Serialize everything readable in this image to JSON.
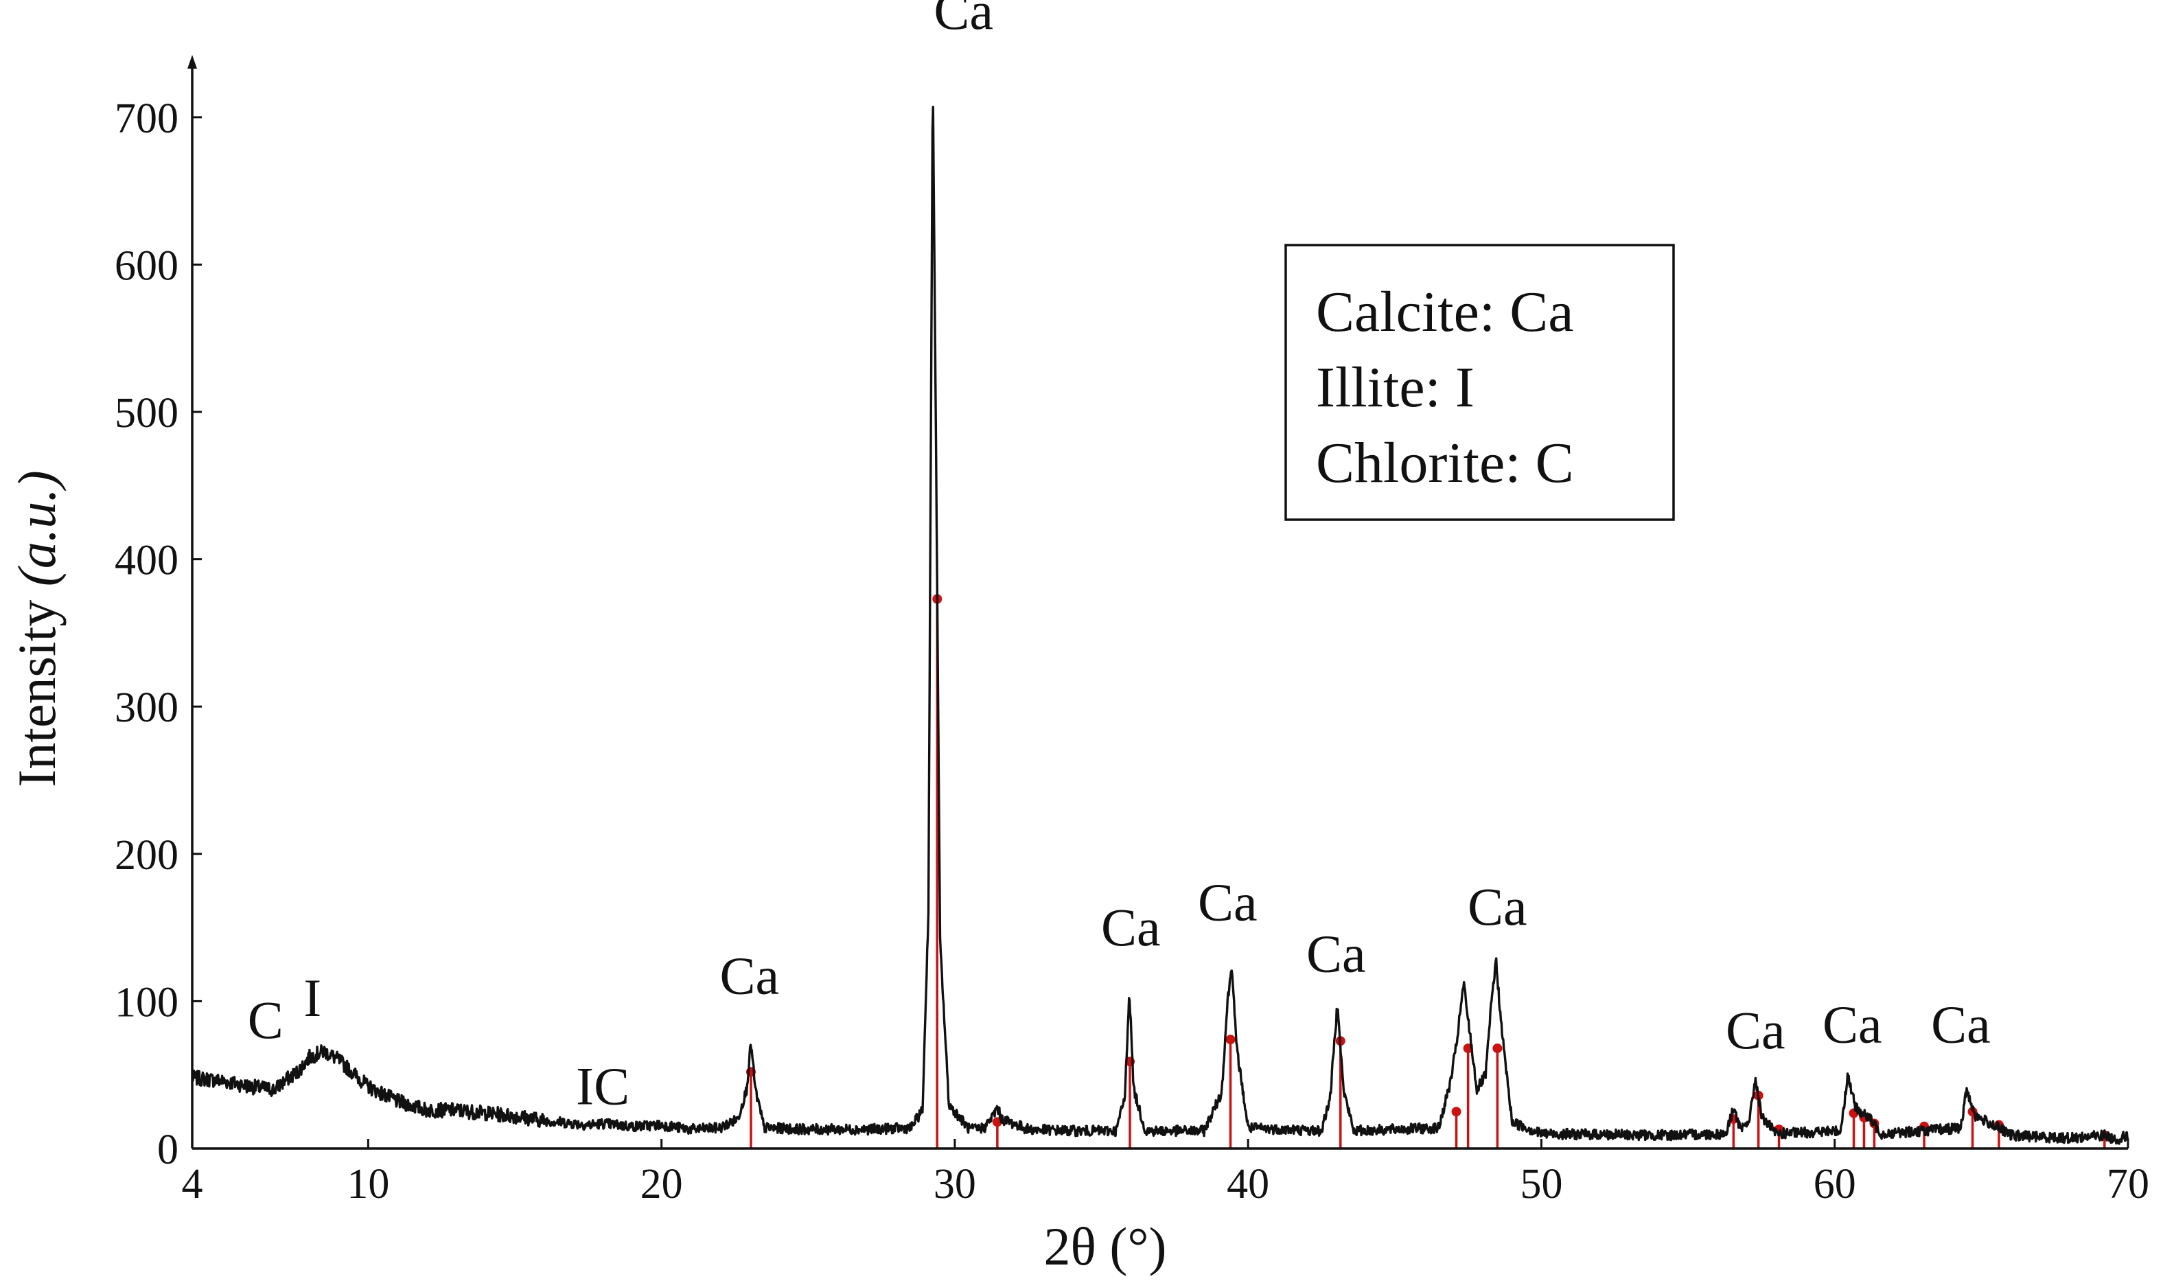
{
  "chart_data": {
    "type": "line",
    "xlabel": "2θ (°)",
    "ylabel_main": "Intensity ",
    "ylabel_unit": "(a.u.)",
    "xlim": [
      4,
      70
    ],
    "ylim": [
      0,
      740
    ],
    "x_ticks": [
      4,
      10,
      20,
      30,
      40,
      50,
      60,
      70
    ],
    "y_ticks": [
      0,
      100,
      200,
      300,
      400,
      500,
      600,
      700
    ],
    "grid": false,
    "line_color": "#111111",
    "reference_color": "#cc1111",
    "pattern_anchors": [
      [
        4.0,
        48
      ],
      [
        5.0,
        46
      ],
      [
        6.0,
        42
      ],
      [
        6.8,
        40
      ],
      [
        7.3,
        48
      ],
      [
        7.6,
        52
      ],
      [
        8.0,
        62
      ],
      [
        8.5,
        66
      ],
      [
        9.0,
        60
      ],
      [
        10.0,
        42
      ],
      [
        11.0,
        32
      ],
      [
        12.0,
        26
      ],
      [
        13.0,
        26
      ],
      [
        14.0,
        24
      ],
      [
        15.0,
        22
      ],
      [
        16.0,
        19
      ],
      [
        17.5,
        16
      ],
      [
        18.0,
        17
      ],
      [
        19.0,
        15
      ],
      [
        20.0,
        16
      ],
      [
        21.0,
        13
      ],
      [
        22.0,
        14
      ],
      [
        22.6,
        20
      ],
      [
        22.9,
        40
      ],
      [
        23.05,
        72
      ],
      [
        23.2,
        40
      ],
      [
        23.5,
        14
      ],
      [
        25.0,
        13
      ],
      [
        27.0,
        13
      ],
      [
        28.5,
        14
      ],
      [
        28.9,
        26
      ],
      [
        29.1,
        160
      ],
      [
        29.25,
        730
      ],
      [
        29.35,
        500
      ],
      [
        29.5,
        140
      ],
      [
        29.8,
        30
      ],
      [
        30.5,
        13
      ],
      [
        31.0,
        14
      ],
      [
        31.3,
        22
      ],
      [
        31.45,
        28
      ],
      [
        31.6,
        20
      ],
      [
        32.5,
        13
      ],
      [
        34.0,
        12
      ],
      [
        35.5,
        12
      ],
      [
        35.8,
        35
      ],
      [
        35.95,
        108
      ],
      [
        36.1,
        40
      ],
      [
        36.5,
        12
      ],
      [
        38.5,
        12
      ],
      [
        39.1,
        38
      ],
      [
        39.3,
        100
      ],
      [
        39.45,
        125
      ],
      [
        39.6,
        70
      ],
      [
        40.0,
        14
      ],
      [
        42.5,
        12
      ],
      [
        42.8,
        35
      ],
      [
        43.05,
        100
      ],
      [
        43.25,
        40
      ],
      [
        43.6,
        12
      ],
      [
        46.5,
        14
      ],
      [
        46.9,
        45
      ],
      [
        47.1,
        70
      ],
      [
        47.35,
        112
      ],
      [
        47.55,
        80
      ],
      [
        47.8,
        40
      ],
      [
        48.1,
        50
      ],
      [
        48.3,
        100
      ],
      [
        48.45,
        128
      ],
      [
        48.65,
        80
      ],
      [
        49.0,
        18
      ],
      [
        50.0,
        10
      ],
      [
        54.0,
        9
      ],
      [
        56.3,
        10
      ],
      [
        56.55,
        28
      ],
      [
        56.8,
        12
      ],
      [
        57.1,
        20
      ],
      [
        57.3,
        48
      ],
      [
        57.5,
        22
      ],
      [
        58.0,
        10
      ],
      [
        60.2,
        12
      ],
      [
        60.45,
        50
      ],
      [
        60.7,
        28
      ],
      [
        61.2,
        20
      ],
      [
        61.6,
        10
      ],
      [
        63.0,
        12
      ],
      [
        64.3,
        14
      ],
      [
        64.5,
        40
      ],
      [
        64.8,
        22
      ],
      [
        65.5,
        15
      ],
      [
        66.0,
        9
      ],
      [
        68.0,
        7
      ],
      [
        69.2,
        9
      ],
      [
        69.6,
        6
      ],
      [
        70.0,
        9
      ]
    ],
    "reference_peaks": [
      [
        23.05,
        52
      ],
      [
        29.4,
        373
      ],
      [
        31.45,
        18
      ],
      [
        35.97,
        59
      ],
      [
        39.4,
        74
      ],
      [
        43.15,
        73
      ],
      [
        47.1,
        25
      ],
      [
        47.5,
        68
      ],
      [
        48.5,
        68
      ],
      [
        56.55,
        20
      ],
      [
        57.4,
        36
      ],
      [
        58.1,
        13
      ],
      [
        60.65,
        24
      ],
      [
        61.0,
        21
      ],
      [
        61.35,
        17
      ],
      [
        63.05,
        15
      ],
      [
        64.7,
        25
      ],
      [
        65.6,
        16
      ],
      [
        69.2,
        9
      ]
    ],
    "annotations": [
      {
        "text": "C",
        "x": 6.5,
        "y": 75
      },
      {
        "text": "I",
        "x": 8.1,
        "y": 90
      },
      {
        "text": "IC",
        "x": 18.0,
        "y": 30
      },
      {
        "text": "Ca",
        "x": 23.0,
        "y": 105
      },
      {
        "text": "Ca",
        "x": 30.3,
        "y": 760
      },
      {
        "text": "Ca",
        "x": 36.0,
        "y": 138
      },
      {
        "text": "Ca",
        "x": 39.3,
        "y": 155
      },
      {
        "text": "Ca",
        "x": 43.0,
        "y": 120
      },
      {
        "text": "Ca",
        "x": 48.5,
        "y": 152
      },
      {
        "text": "Ca",
        "x": 57.3,
        "y": 68
      },
      {
        "text": "Ca",
        "x": 60.6,
        "y": 72
      },
      {
        "text": "Ca",
        "x": 64.3,
        "y": 72
      }
    ],
    "legend": {
      "position": "top-right",
      "entries": [
        "Calcite: Ca",
        "Illite: I",
        "Chlorite: C"
      ]
    }
  }
}
